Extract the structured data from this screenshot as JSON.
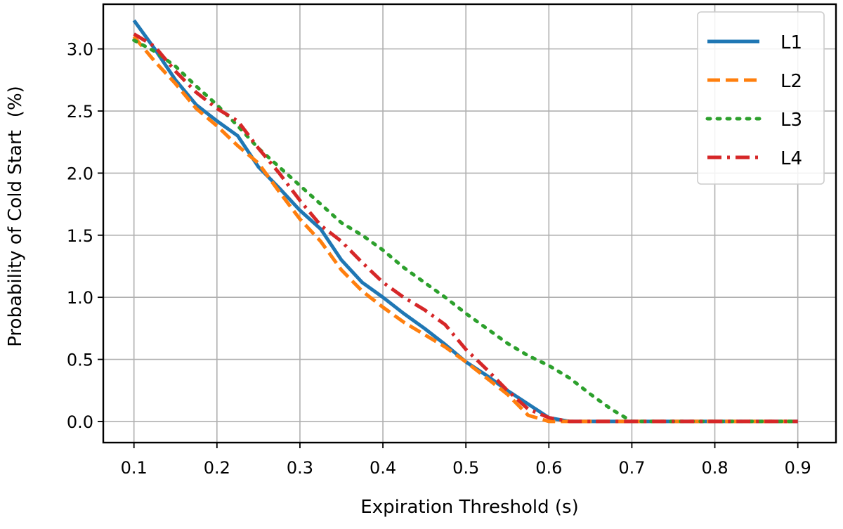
{
  "chart_data": {
    "type": "line",
    "title": "",
    "xlabel": "Expiration Threshold (s)",
    "ylabel": "Probability of Cold Start",
    "ylabel_unit": "(%)",
    "xlim": [
      0.063,
      0.946
    ],
    "ylim": [
      -0.17,
      3.36
    ],
    "xticks": [
      0.1,
      0.2,
      0.3,
      0.4,
      0.5,
      0.6,
      0.7,
      0.8,
      0.9
    ],
    "xtick_labels": [
      "0.1",
      "0.2",
      "0.3",
      "0.4",
      "0.5",
      "0.6",
      "0.7",
      "0.8",
      "0.9"
    ],
    "yticks": [
      0.0,
      0.5,
      1.0,
      1.5,
      2.0,
      2.5,
      3.0
    ],
    "ytick_labels": [
      "0.0",
      "0.5",
      "1.0",
      "1.5",
      "2.0",
      "2.5",
      "3.0"
    ],
    "grid": true,
    "legend_position": "top-right",
    "series": [
      {
        "name": "L1",
        "color": "#1f77b4",
        "style": "solid",
        "x": [
          0.1,
          0.125,
          0.15,
          0.175,
          0.2,
          0.225,
          0.25,
          0.275,
          0.3,
          0.325,
          0.35,
          0.375,
          0.4,
          0.425,
          0.45,
          0.475,
          0.5,
          0.525,
          0.55,
          0.575,
          0.6,
          0.625,
          0.65,
          0.7,
          0.75,
          0.8,
          0.85,
          0.9
        ],
        "y": [
          3.23,
          3.0,
          2.75,
          2.55,
          2.42,
          2.3,
          2.05,
          1.88,
          1.7,
          1.55,
          1.3,
          1.12,
          1.0,
          0.87,
          0.75,
          0.62,
          0.48,
          0.37,
          0.25,
          0.14,
          0.03,
          0.0,
          0.0,
          0.0,
          0.0,
          0.0,
          0.0,
          0.0
        ]
      },
      {
        "name": "L2",
        "color": "#ff7f0e",
        "style": "dashed",
        "x": [
          0.1,
          0.125,
          0.15,
          0.175,
          0.2,
          0.225,
          0.25,
          0.275,
          0.3,
          0.325,
          0.35,
          0.375,
          0.4,
          0.425,
          0.45,
          0.475,
          0.5,
          0.525,
          0.55,
          0.575,
          0.6,
          0.625,
          0.65,
          0.7,
          0.75,
          0.8,
          0.85,
          0.9
        ],
        "y": [
          3.1,
          2.9,
          2.72,
          2.52,
          2.38,
          2.22,
          2.08,
          1.85,
          1.63,
          1.45,
          1.22,
          1.05,
          0.92,
          0.8,
          0.7,
          0.6,
          0.48,
          0.35,
          0.22,
          0.05,
          0.0,
          0.0,
          0.0,
          0.0,
          0.0,
          0.0,
          0.0,
          0.0
        ]
      },
      {
        "name": "L3",
        "color": "#2ca02c",
        "style": "dotted",
        "x": [
          0.1,
          0.125,
          0.15,
          0.175,
          0.2,
          0.225,
          0.25,
          0.275,
          0.3,
          0.325,
          0.35,
          0.375,
          0.4,
          0.425,
          0.45,
          0.475,
          0.5,
          0.525,
          0.55,
          0.575,
          0.6,
          0.625,
          0.65,
          0.675,
          0.7,
          0.75,
          0.8,
          0.85,
          0.9
        ],
        "y": [
          3.07,
          2.98,
          2.86,
          2.7,
          2.55,
          2.38,
          2.2,
          2.05,
          1.9,
          1.75,
          1.6,
          1.5,
          1.38,
          1.24,
          1.12,
          1.0,
          0.87,
          0.75,
          0.63,
          0.53,
          0.45,
          0.35,
          0.22,
          0.1,
          0.0,
          0.0,
          0.0,
          0.0,
          0.0
        ]
      },
      {
        "name": "L4",
        "color": "#d62728",
        "style": "dashdot",
        "x": [
          0.1,
          0.125,
          0.15,
          0.175,
          0.2,
          0.225,
          0.25,
          0.275,
          0.3,
          0.325,
          0.35,
          0.375,
          0.4,
          0.425,
          0.45,
          0.475,
          0.5,
          0.525,
          0.55,
          0.575,
          0.6,
          0.625,
          0.65,
          0.7,
          0.75,
          0.8,
          0.85,
          0.9
        ],
        "y": [
          3.12,
          3.02,
          2.82,
          2.65,
          2.52,
          2.42,
          2.2,
          2.0,
          1.78,
          1.58,
          1.45,
          1.28,
          1.12,
          1.0,
          0.9,
          0.78,
          0.58,
          0.42,
          0.25,
          0.1,
          0.03,
          0.0,
          0.0,
          0.0,
          0.0,
          0.0,
          0.0,
          0.0
        ]
      }
    ]
  }
}
